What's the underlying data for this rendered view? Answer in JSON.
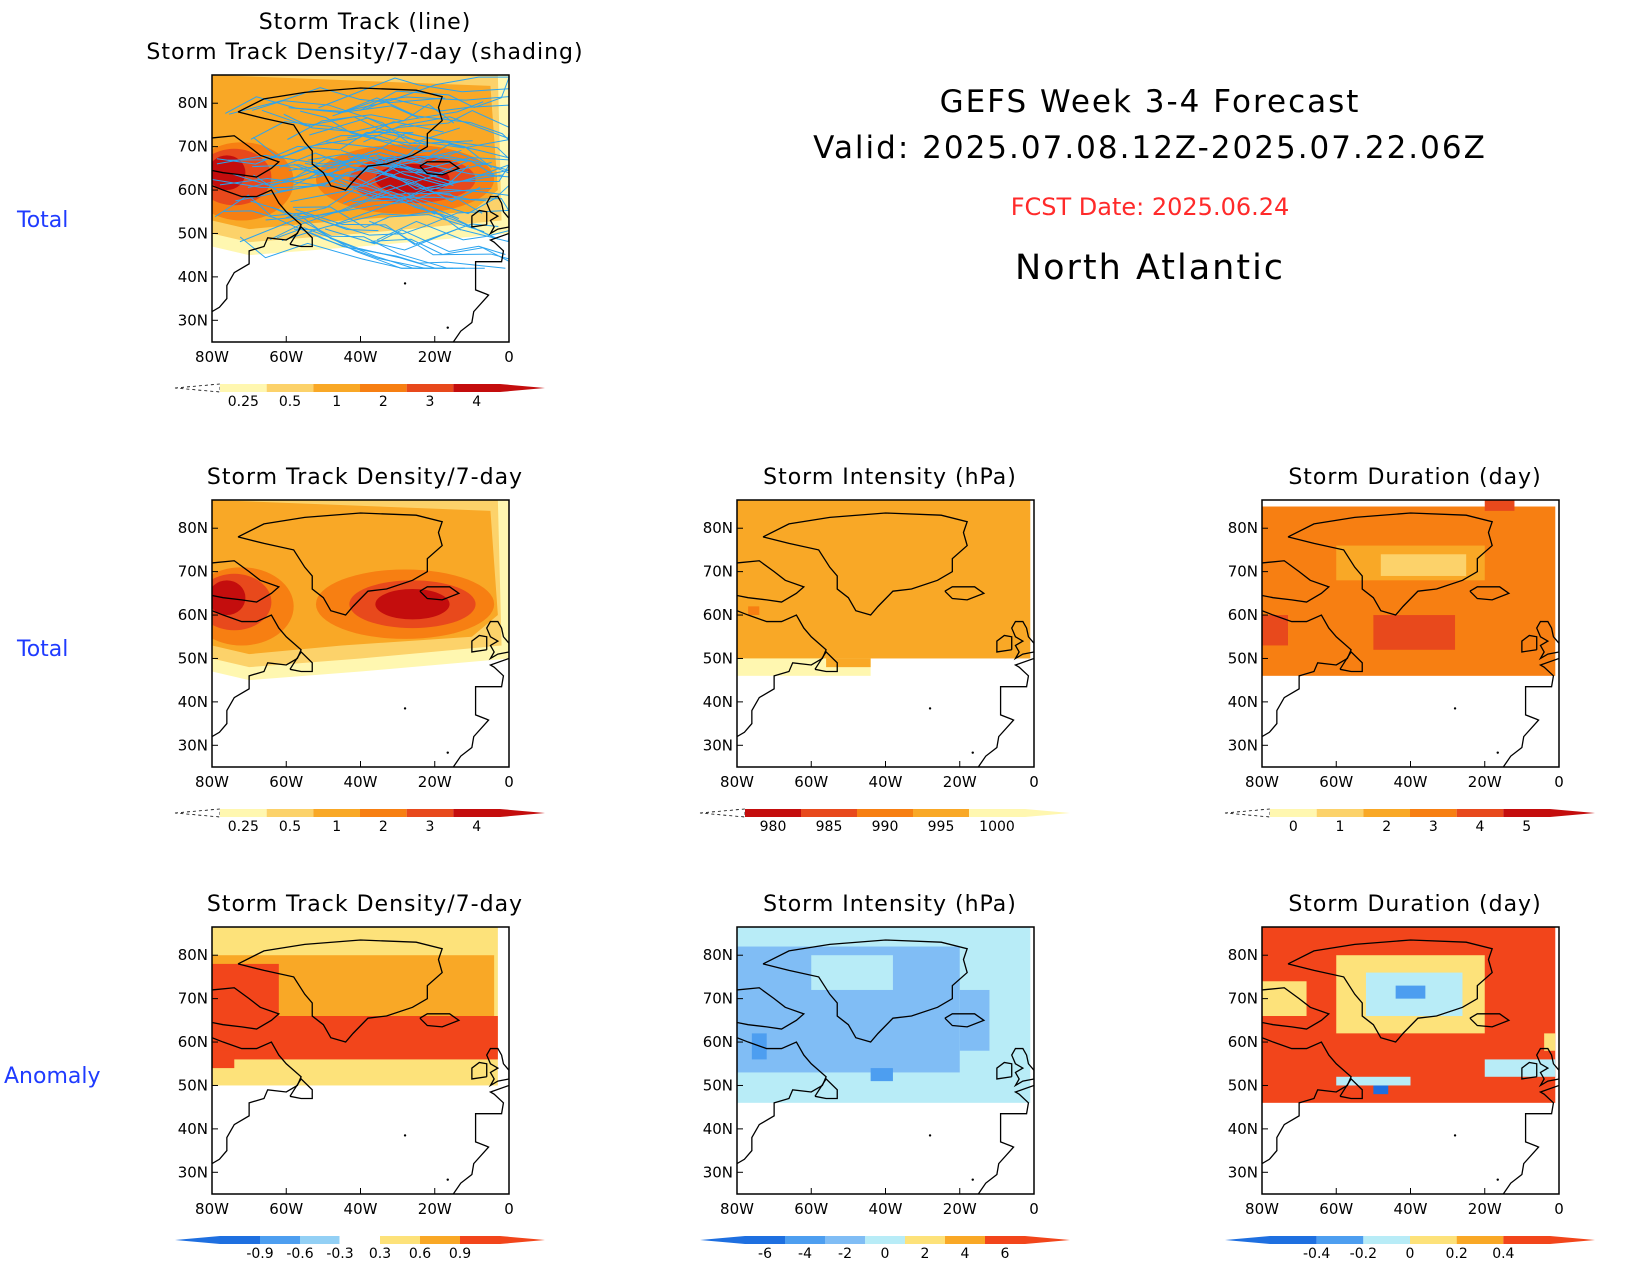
{
  "header": {
    "title_line1": "GEFS Week 3-4 Forecast",
    "title_line2": "Valid: 2025.07.08.12Z-2025.07.22.06Z",
    "fcst_date": "FCST Date: 2025.06.24",
    "region": "North Atlantic",
    "fcst_color": "#ff2a2a"
  },
  "row_labels": [
    "Total",
    "Total",
    "Anomaly"
  ],
  "axes": {
    "lon_ticks": [
      "80W",
      "60W",
      "40W",
      "20W",
      "0"
    ],
    "lat_ticks": [
      "80N",
      "70N",
      "60N",
      "50N",
      "40N",
      "30N"
    ]
  },
  "chart_data": [
    {
      "type": "heatmap",
      "id": "track-total",
      "title": "Storm Track (line)",
      "subtitle": "Storm Track Density/7-day (shading)",
      "colorbar": {
        "ticks": [
          "0.25",
          "0.5",
          "1",
          "2",
          "3",
          "4"
        ],
        "colors": [
          "#fff7b0",
          "#fcd26a",
          "#f9a826",
          "#f77f12",
          "#e8491c",
          "#c40d0d"
        ]
      },
      "track_color": "#2ba4f0"
    },
    {
      "type": "heatmap",
      "id": "density-total",
      "title": "Storm Track Density/7-day",
      "colorbar": {
        "ticks": [
          "0.25",
          "0.5",
          "1",
          "2",
          "3",
          "4"
        ],
        "colors": [
          "#fff7b0",
          "#fcd26a",
          "#f9a826",
          "#f77f12",
          "#e8491c",
          "#c40d0d"
        ]
      }
    },
    {
      "type": "heatmap",
      "id": "intensity-total",
      "title": "Storm Intensity (hPa)",
      "colorbar": {
        "ticks": [
          "980",
          "985",
          "990",
          "995",
          "1000"
        ],
        "colors": [
          "#c40d0d",
          "#e8491c",
          "#f77f12",
          "#f9a826",
          "#fff7b0"
        ]
      }
    },
    {
      "type": "heatmap",
      "id": "duration-total",
      "title": "Storm Duration (day)",
      "colorbar": {
        "ticks": [
          "0",
          "1",
          "2",
          "3",
          "4",
          "5"
        ],
        "colors": [
          "#fff7b0",
          "#fcd26a",
          "#f9a826",
          "#f77f12",
          "#e8491c",
          "#c40d0d"
        ]
      }
    },
    {
      "type": "heatmap",
      "id": "density-anom",
      "title": "Storm Track Density/7-day",
      "colorbar": {
        "ticks": [
          "-0.9",
          "-0.6",
          "-0.3",
          "0.3",
          "0.6",
          "0.9"
        ],
        "colors": [
          "#1e6fe0",
          "#4d9ef0",
          "#93d0f5",
          "#ffffff",
          "#fde27a",
          "#f9a826",
          "#f2451b"
        ]
      }
    },
    {
      "type": "heatmap",
      "id": "intensity-anom",
      "title": "Storm Intensity (hPa)",
      "colorbar": {
        "ticks": [
          "-6",
          "-4",
          "-2",
          "0",
          "2",
          "4",
          "6"
        ],
        "colors": [
          "#1e6fe0",
          "#4d9ef0",
          "#80bdf5",
          "#b8ecf7",
          "#fde27a",
          "#f9a826",
          "#f2451b"
        ]
      }
    },
    {
      "type": "heatmap",
      "id": "duration-anom",
      "title": "Storm Duration (day)",
      "colorbar": {
        "ticks": [
          "-0.4",
          "-0.2",
          "0",
          "0.2",
          "0.4"
        ],
        "colors": [
          "#1e6fe0",
          "#4d9ef0",
          "#b8ecf7",
          "#fde27a",
          "#f9a826",
          "#f2451b"
        ]
      }
    }
  ]
}
